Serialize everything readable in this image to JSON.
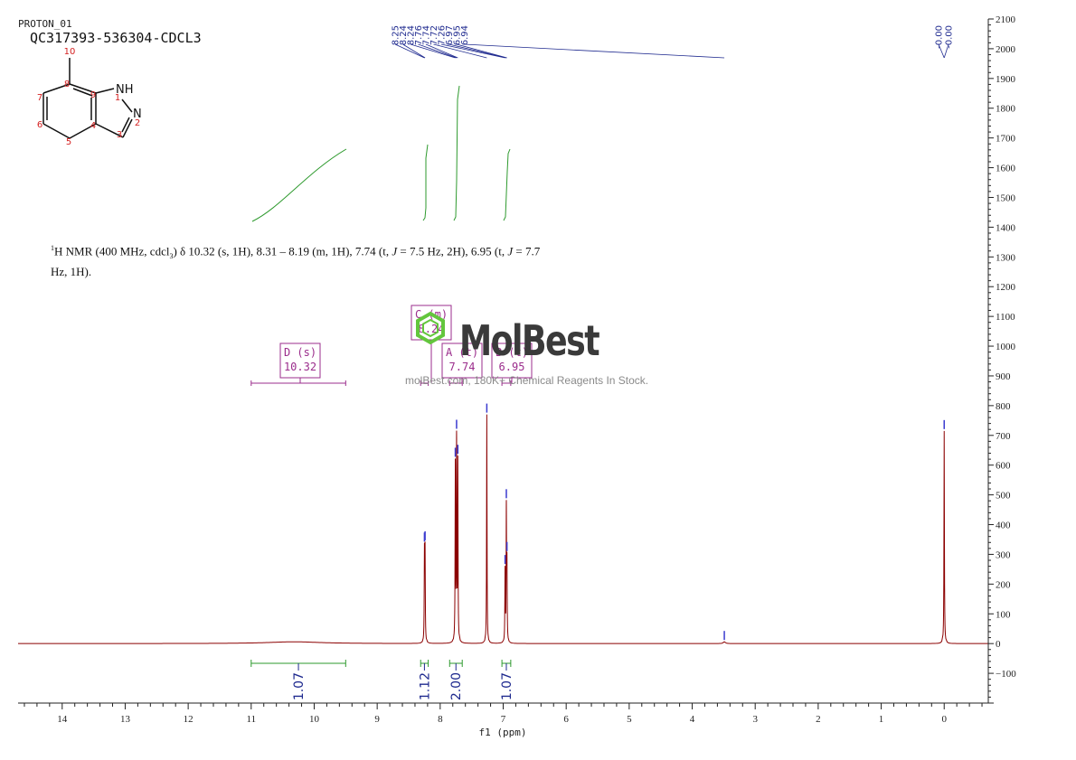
{
  "header": {
    "sample_id": "PROTON_01",
    "compound_id": "QC317393-536304-CDCL3"
  },
  "structure": {
    "atom_labels": [
      "10",
      "8",
      "9",
      "1",
      "7",
      "6",
      "5",
      "4",
      "3",
      "2"
    ],
    "hetero_labels": [
      "NH",
      "N"
    ]
  },
  "description": {
    "nucleus": "1",
    "part1": "H NMR (400 MHz, cdcl",
    "sub3": "3",
    "part2": ") δ 10.32 (s, 1H), 8.31 – 8.19 (m, 1H), 7.74 (t, ",
    "J1": "J",
    "part3": " = 7.5 Hz, 2H), 6.95 (t, ",
    "J2": "J",
    "part4": " = 7.7 Hz, 1H)."
  },
  "watermark": {
    "brand": "MolBest",
    "tagline": "molBest.com, 180K+ Chemical Reagents In Stock."
  },
  "colors": {
    "spectrum": "#8b0000",
    "integral": "#2e9a2e",
    "multiplet": "#9b2d8c",
    "peak_label": "#1f2a8f",
    "axis": "#222222",
    "watermark": "#3a3a3a",
    "logo": "#63c63d",
    "atom_number": "#d42020"
  },
  "chart_data": {
    "type": "line",
    "x_axis_label": "f1 (ppm)",
    "xlim": [
      14.7,
      -0.7
    ],
    "ylim": [
      -200,
      2100
    ],
    "x_ticks": [
      14,
      13,
      12,
      11,
      10,
      9,
      8,
      7,
      6,
      5,
      4,
      3,
      2,
      1,
      0
    ],
    "y_ticks": [
      -100,
      0,
      100,
      200,
      300,
      400,
      500,
      600,
      700,
      800,
      900,
      1000,
      1100,
      1200,
      1300,
      1400,
      1500,
      1600,
      1700,
      1800,
      1900,
      2000,
      2100
    ],
    "peak_labels": [
      "8.25",
      "8.24",
      "8.24",
      "7.76",
      "7.74",
      "7.72",
      "7.26",
      "6.97",
      "6.95",
      "6.94",
      "-0.00",
      "-0.00"
    ],
    "peaks": [
      {
        "ppm": 10.32,
        "height": 6,
        "width": 0.5
      },
      {
        "ppm": 8.25,
        "height": 295,
        "width": 0.004
      },
      {
        "ppm": 8.24,
        "height": 300,
        "width": 0.004
      },
      {
        "ppm": 7.76,
        "height": 590,
        "width": 0.004
      },
      {
        "ppm": 7.74,
        "height": 670,
        "width": 0.004
      },
      {
        "ppm": 7.72,
        "height": 600,
        "width": 0.004
      },
      {
        "ppm": 7.26,
        "height": 770,
        "width": 0.004
      },
      {
        "ppm": 6.97,
        "height": 240,
        "width": 0.004
      },
      {
        "ppm": 6.95,
        "height": 440,
        "width": 0.004
      },
      {
        "ppm": 6.94,
        "height": 240,
        "width": 0.004
      },
      {
        "ppm": 3.49,
        "height": 6,
        "width": 0.02
      },
      {
        "ppm": 0.0,
        "height": 715,
        "width": 0.004
      }
    ],
    "integrals": [
      {
        "from": 11.0,
        "to": 9.5,
        "value": "1.07"
      },
      {
        "from": 8.31,
        "to": 8.19,
        "value": "1.12"
      },
      {
        "from": 7.85,
        "to": 7.65,
        "value": "2.00"
      },
      {
        "from": 7.02,
        "to": 6.88,
        "value": "1.07"
      }
    ],
    "multiplets": [
      {
        "letter": "D (s)",
        "shift": "10.32",
        "range": [
          11.0,
          9.5
        ]
      },
      {
        "letter": "C (m)",
        "shift": "8.24",
        "range": [
          8.31,
          8.19
        ]
      },
      {
        "letter": "A (t)",
        "shift": "7.74",
        "range": [
          7.85,
          7.65
        ]
      },
      {
        "letter": "B (t)",
        "shift": "6.95",
        "range": [
          7.02,
          6.88
        ]
      }
    ]
  }
}
